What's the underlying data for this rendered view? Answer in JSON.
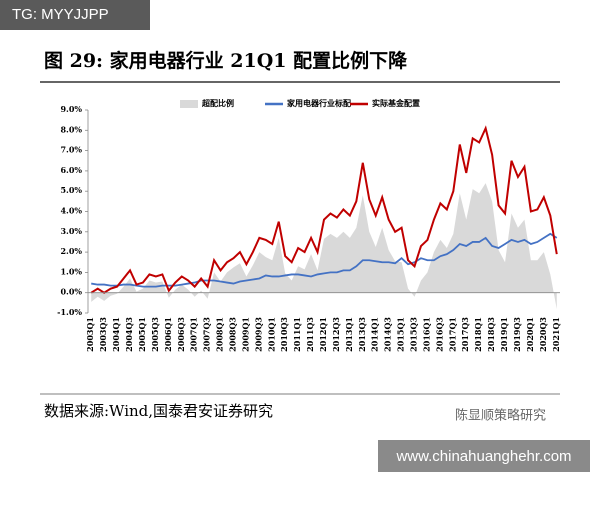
{
  "watermarks": [
    "TG: MYYJJPP",
    "陈显顺策略研究",
    "www.chinahuanghehr.com"
  ],
  "chart_data": {
    "type": "line",
    "title": "图 29:  家用电器行业 21Q1 配置比例下降",
    "source": "数据来源:Wind,国泰君安证券研究",
    "categories": [
      "2003Q1",
      null,
      "2003Q3",
      null,
      "2004Q1",
      null,
      "2004Q3",
      null,
      "2005Q1",
      null,
      "2005Q3",
      null,
      "2006Q1",
      null,
      "2006Q3",
      null,
      "2007Q1",
      null,
      "2007Q3",
      null,
      "2008Q1",
      null,
      "2008Q3",
      null,
      "2009Q1",
      null,
      "2009Q3",
      null,
      "2010Q1",
      null,
      "2010Q3",
      null,
      "2011Q1",
      null,
      "2011Q3",
      null,
      "2012Q1",
      null,
      "2012Q3",
      null,
      "2013Q1",
      null,
      "2013Q3",
      null,
      "2014Q1",
      null,
      "2014Q3",
      null,
      "2015Q1",
      null,
      "2015Q3",
      null,
      "2016Q1",
      null,
      "2016Q3",
      null,
      "2017Q1",
      null,
      "2017Q3",
      null,
      "2018Q1",
      null,
      "2018Q3",
      null,
      "2019Q1",
      null,
      "2019Q3",
      null,
      "2020Q1",
      null,
      "2020Q3",
      null,
      "2021Q1"
    ],
    "series": [
      {
        "name": "超配比例",
        "kind": "area",
        "color": "#d9d9d9",
        "values": [
          -0.45,
          -0.2,
          -0.4,
          -0.15,
          -0.05,
          0.3,
          0.7,
          0.05,
          0.2,
          0.6,
          0.5,
          0.55,
          -0.25,
          0.15,
          0.4,
          0.15,
          -0.2,
          0.1,
          -0.3,
          1.0,
          0.55,
          1.0,
          1.25,
          1.45,
          0.8,
          1.35,
          2.0,
          1.75,
          1.6,
          2.7,
          0.95,
          0.6,
          1.3,
          1.15,
          1.9,
          1.1,
          2.65,
          2.9,
          2.7,
          3.0,
          2.7,
          3.2,
          4.8,
          3.0,
          2.25,
          3.2,
          2.1,
          1.55,
          1.5,
          0.2,
          -0.2,
          0.6,
          1.0,
          2.0,
          2.6,
          2.2,
          2.9,
          4.9,
          3.6,
          5.1,
          4.9,
          5.4,
          4.5,
          2.1,
          1.5,
          3.9,
          3.2,
          3.6,
          1.6,
          1.6,
          2.0,
          0.9,
          -0.8
        ]
      },
      {
        "name": "家用电器行业标配",
        "kind": "line",
        "color": "#4472c4",
        "values": [
          0.45,
          0.4,
          0.4,
          0.35,
          0.35,
          0.4,
          0.4,
          0.35,
          0.3,
          0.3,
          0.3,
          0.35,
          0.35,
          0.35,
          0.4,
          0.45,
          0.5,
          0.6,
          0.6,
          0.6,
          0.55,
          0.5,
          0.45,
          0.55,
          0.6,
          0.65,
          0.7,
          0.85,
          0.8,
          0.8,
          0.85,
          0.9,
          0.9,
          0.85,
          0.8,
          0.9,
          0.95,
          1.0,
          1.0,
          1.1,
          1.1,
          1.3,
          1.6,
          1.6,
          1.55,
          1.5,
          1.5,
          1.45,
          1.7,
          1.4,
          1.5,
          1.7,
          1.6,
          1.6,
          1.8,
          1.9,
          2.1,
          2.4,
          2.3,
          2.5,
          2.5,
          2.7,
          2.3,
          2.2,
          2.4,
          2.6,
          2.5,
          2.6,
          2.4,
          2.5,
          2.7,
          2.9,
          2.7
        ]
      },
      {
        "name": "实际基金配置",
        "kind": "line",
        "color": "#c00000",
        "values": [
          0.0,
          0.2,
          0.0,
          0.2,
          0.3,
          0.7,
          1.1,
          0.4,
          0.5,
          0.9,
          0.8,
          0.9,
          0.1,
          0.5,
          0.8,
          0.6,
          0.3,
          0.7,
          0.3,
          1.6,
          1.1,
          1.5,
          1.7,
          2.0,
          1.4,
          2.0,
          2.7,
          2.6,
          2.4,
          3.5,
          1.8,
          1.5,
          2.2,
          2.0,
          2.7,
          2.0,
          3.6,
          3.9,
          3.7,
          4.1,
          3.8,
          4.5,
          6.4,
          4.6,
          3.8,
          4.7,
          3.6,
          3.0,
          3.2,
          1.6,
          1.3,
          2.3,
          2.6,
          3.6,
          4.4,
          4.1,
          5.0,
          7.3,
          5.9,
          7.6,
          7.4,
          8.1,
          6.8,
          4.3,
          3.9,
          6.5,
          5.7,
          6.2,
          4.0,
          4.1,
          4.7,
          3.8,
          1.9
        ]
      }
    ],
    "ylim": [
      -1,
      9
    ],
    "yticks": [
      {
        "value": -1,
        "label": "-1.0%"
      },
      {
        "value": 0,
        "label": "0.0%"
      },
      {
        "value": 1,
        "label": "1.0%"
      },
      {
        "value": 2,
        "label": "2.0%"
      },
      {
        "value": 3,
        "label": "3.0%"
      },
      {
        "value": 4,
        "label": "4.0%"
      },
      {
        "value": 5,
        "label": "5.0%"
      },
      {
        "value": 6,
        "label": "6.0%"
      },
      {
        "value": 7,
        "label": "7.0%"
      },
      {
        "value": 8,
        "label": "8.0%"
      },
      {
        "value": 9,
        "label": "9.0%"
      }
    ],
    "grid": false,
    "legend": "top"
  }
}
